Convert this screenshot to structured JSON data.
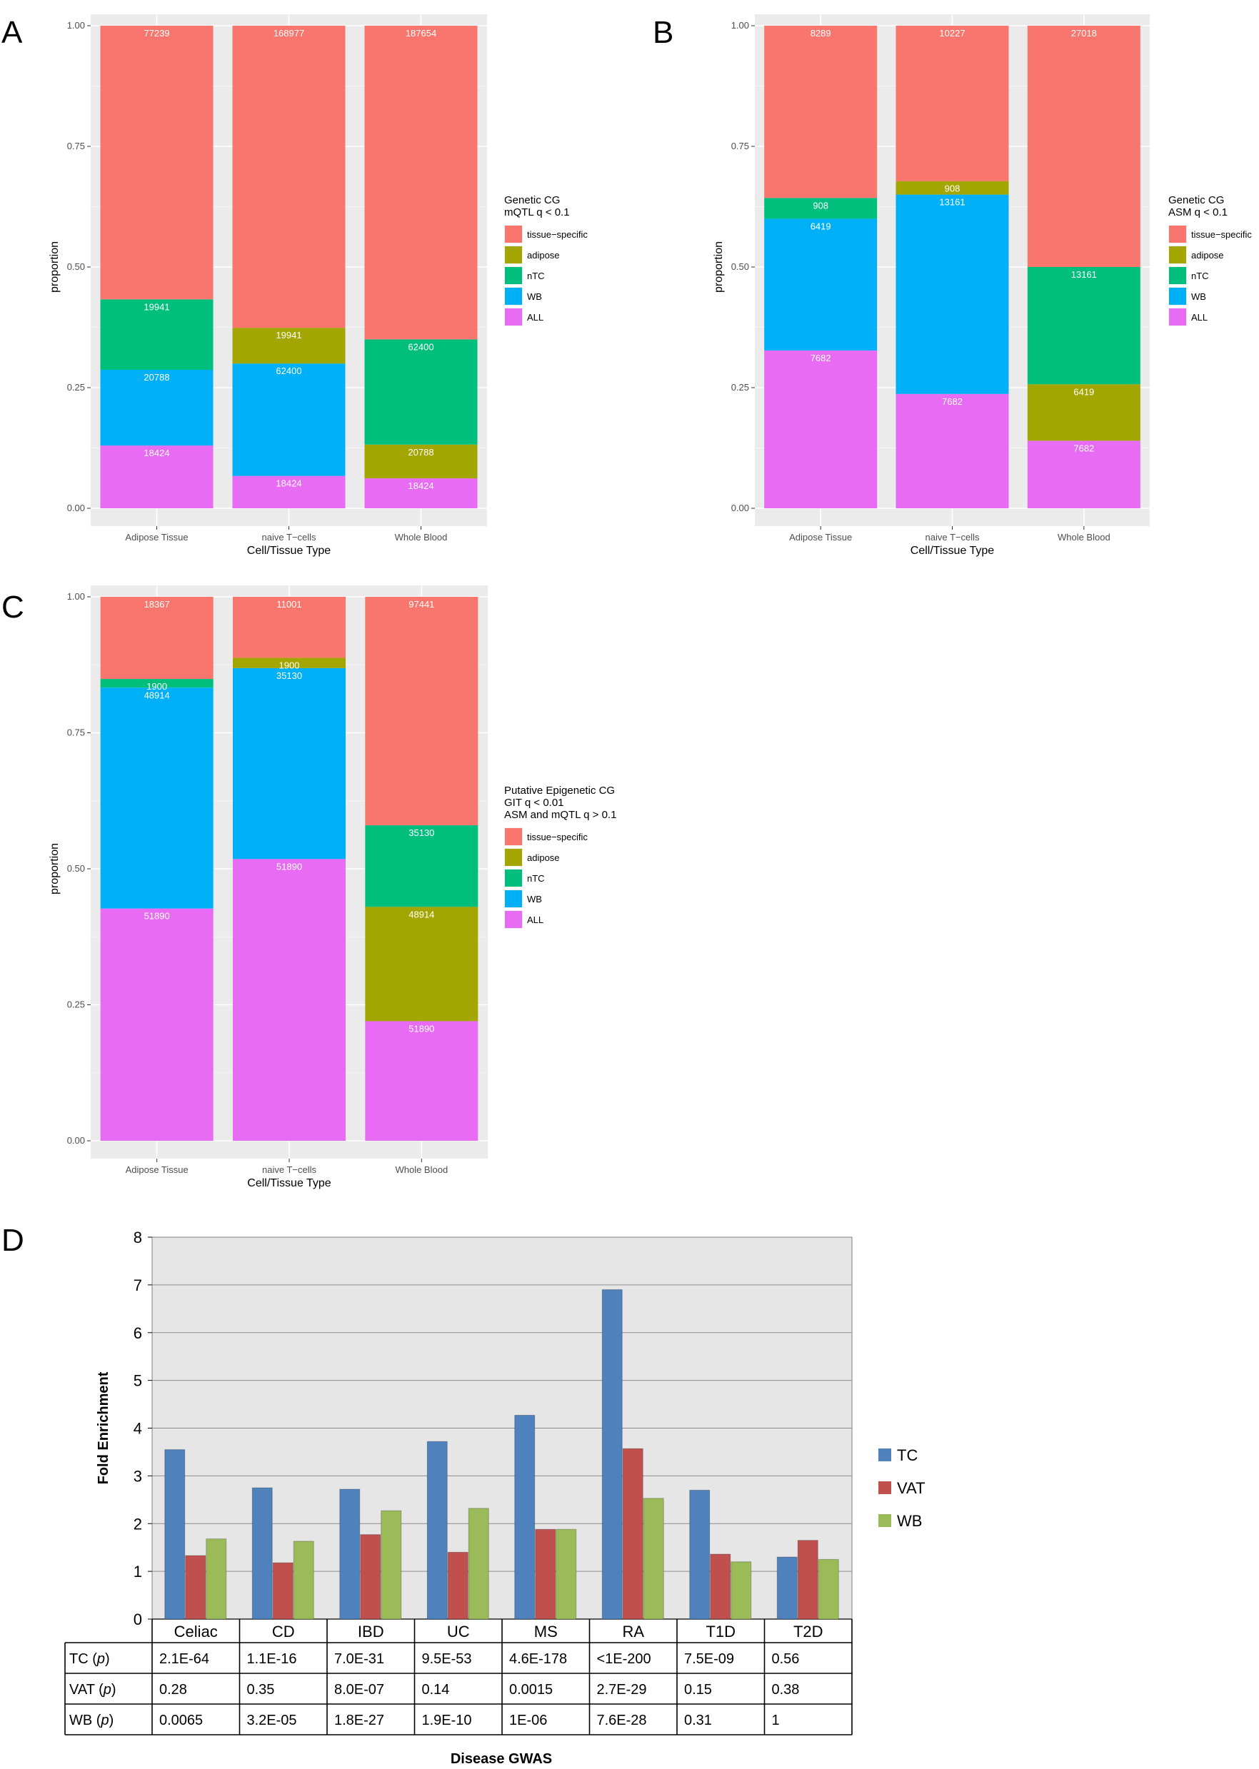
{
  "panel_labels": [
    "A",
    "B",
    "C",
    "D"
  ],
  "colors": {
    "tissue-specific": "#F8766D",
    "adipose": "#A3A500",
    "nTC": "#00BF7D",
    "WB": "#00B0F6",
    "ALL": "#E76BF3",
    "TC": "#4F81BD",
    "VAT": "#C0504D",
    "WB_d": "#9BBB59"
  },
  "chart_data": [
    {
      "id": "A",
      "type": "bar",
      "stacked": true,
      "categories": [
        "Adipose Tissue",
        "naive T−cells",
        "Whole Blood"
      ],
      "xlabel": "Cell/Tissue Type",
      "ylabel": "proportion",
      "ylim": [
        0,
        1
      ],
      "yticks": [
        "0.00",
        "0.25",
        "0.50",
        "0.75",
        "1.00"
      ],
      "legend_title": [
        "Genetic CG",
        "mQTL q < 0.1"
      ],
      "legend_items": [
        "tissue−specific",
        "adipose",
        "nTC",
        "WB",
        "ALL"
      ],
      "stacks": [
        [
          {
            "group": "ALL",
            "label": "18424",
            "lo": 0.0,
            "hi": 0.13
          },
          {
            "group": "WB",
            "label": "20788",
            "lo": 0.13,
            "hi": 0.287
          },
          {
            "group": "nTC",
            "label": "19941",
            "lo": 0.287,
            "hi": 0.433
          },
          {
            "group": "tissue-specific",
            "label": "77239",
            "lo": 0.433,
            "hi": 1.0
          }
        ],
        [
          {
            "group": "ALL",
            "label": "18424",
            "lo": 0.0,
            "hi": 0.067
          },
          {
            "group": "WB",
            "label": "62400",
            "lo": 0.067,
            "hi": 0.3
          },
          {
            "group": "adipose",
            "label": "19941",
            "lo": 0.3,
            "hi": 0.374
          },
          {
            "group": "tissue-specific",
            "label": "168977",
            "lo": 0.374,
            "hi": 1.0
          }
        ],
        [
          {
            "group": "ALL",
            "label": "18424",
            "lo": 0.0,
            "hi": 0.062
          },
          {
            "group": "adipose",
            "label": "20788",
            "lo": 0.062,
            "hi": 0.132
          },
          {
            "group": "nTC",
            "label": "62400",
            "lo": 0.132,
            "hi": 0.35
          },
          {
            "group": "tissue-specific",
            "label": "187654",
            "lo": 0.35,
            "hi": 1.0
          }
        ]
      ]
    },
    {
      "id": "B",
      "type": "bar",
      "stacked": true,
      "categories": [
        "Adipose Tissue",
        "naive T−cells",
        "Whole Blood"
      ],
      "xlabel": "Cell/Tissue Type",
      "ylabel": "proportion",
      "ylim": [
        0,
        1
      ],
      "yticks": [
        "0.00",
        "0.25",
        "0.50",
        "0.75",
        "1.00"
      ],
      "legend_title": [
        "Genetic CG",
        "ASM q < 0.1"
      ],
      "legend_items": [
        "tissue−specific",
        "adipose",
        "nTC",
        "WB",
        "ALL"
      ],
      "stacks": [
        [
          {
            "group": "ALL",
            "label": "7682",
            "lo": 0.0,
            "hi": 0.327
          },
          {
            "group": "WB",
            "label": "6419",
            "lo": 0.327,
            "hi": 0.6
          },
          {
            "group": "nTC",
            "label": "908",
            "lo": 0.6,
            "hi": 0.643
          },
          {
            "group": "tissue-specific",
            "label": "8289",
            "lo": 0.643,
            "hi": 1.0
          }
        ],
        [
          {
            "group": "ALL",
            "label": "7682",
            "lo": 0.0,
            "hi": 0.237
          },
          {
            "group": "WB",
            "label": "13161",
            "lo": 0.237,
            "hi": 0.65
          },
          {
            "group": "adipose",
            "label": "908",
            "lo": 0.65,
            "hi": 0.678
          },
          {
            "group": "tissue-specific",
            "label": "10227",
            "lo": 0.678,
            "hi": 1.0
          }
        ],
        [
          {
            "group": "ALL",
            "label": "7682",
            "lo": 0.0,
            "hi": 0.14
          },
          {
            "group": "adipose",
            "label": "6419",
            "lo": 0.14,
            "hi": 0.257
          },
          {
            "group": "nTC",
            "label": "13161",
            "lo": 0.257,
            "hi": 0.5
          },
          {
            "group": "tissue-specific",
            "label": "27018",
            "lo": 0.5,
            "hi": 1.0
          }
        ]
      ]
    },
    {
      "id": "C",
      "type": "bar",
      "stacked": true,
      "categories": [
        "Adipose Tissue",
        "naive T−cells",
        "Whole Blood"
      ],
      "xlabel": "Cell/Tissue Type",
      "ylabel": "proportion",
      "ylim": [
        0,
        1
      ],
      "yticks": [
        "0.00",
        "0.25",
        "0.50",
        "0.75",
        "1.00"
      ],
      "legend_title": [
        "Putative Epigenetic CG",
        "GIT q < 0.01",
        "ASM and mQTL q > 0.1"
      ],
      "legend_items": [
        "tissue−specific",
        "adipose",
        "nTC",
        "WB",
        "ALL"
      ],
      "stacks": [
        [
          {
            "group": "ALL",
            "label": "51890",
            "lo": 0.0,
            "hi": 0.427
          },
          {
            "group": "WB",
            "label": "48914",
            "lo": 0.427,
            "hi": 0.833
          },
          {
            "group": "nTC",
            "label": "1900",
            "lo": 0.833,
            "hi": 0.849
          },
          {
            "group": "tissue-specific",
            "label": "18367",
            "lo": 0.849,
            "hi": 1.0
          }
        ],
        [
          {
            "group": "ALL",
            "label": "51890",
            "lo": 0.0,
            "hi": 0.518
          },
          {
            "group": "WB",
            "label": "35130",
            "lo": 0.518,
            "hi": 0.869
          },
          {
            "group": "adipose",
            "label": "1900",
            "lo": 0.869,
            "hi": 0.888
          },
          {
            "group": "tissue-specific",
            "label": "11001",
            "lo": 0.888,
            "hi": 1.0
          }
        ],
        [
          {
            "group": "ALL",
            "label": "51890",
            "lo": 0.0,
            "hi": 0.22
          },
          {
            "group": "adipose",
            "label": "48914",
            "lo": 0.22,
            "hi": 0.43
          },
          {
            "group": "nTC",
            "label": "35130",
            "lo": 0.43,
            "hi": 0.58
          },
          {
            "group": "tissue-specific",
            "label": "97441",
            "lo": 0.58,
            "hi": 1.0
          }
        ]
      ]
    },
    {
      "id": "D",
      "type": "bar",
      "categories": [
        "Celiac",
        "CD",
        "IBD",
        "UC",
        "MS",
        "RA",
        "T1D",
        "T2D"
      ],
      "xlabel": "Disease GWAS",
      "ylabel": "Fold Enrichment",
      "ylim": [
        0,
        8
      ],
      "yticks": [
        "0",
        "1",
        "2",
        "3",
        "4",
        "5",
        "6",
        "7",
        "8"
      ],
      "series": [
        {
          "name": "TC",
          "values": [
            3.55,
            2.75,
            2.72,
            3.72,
            4.27,
            6.9,
            2.7,
            1.3
          ]
        },
        {
          "name": "VAT",
          "values": [
            1.33,
            1.18,
            1.77,
            1.4,
            1.88,
            3.57,
            1.36,
            1.65
          ]
        },
        {
          "name": "WB",
          "values": [
            1.68,
            1.63,
            2.27,
            2.32,
            1.88,
            2.53,
            1.2,
            1.25
          ]
        }
      ],
      "table": {
        "rows": [
          {
            "label": "TC",
            "p": "p",
            "values": [
              "2.1E-64",
              "1.1E-16",
              "7.0E-31",
              "9.5E-53",
              "4.6E-178",
              "<1E-200",
              "7.5E-09",
              "0.56"
            ]
          },
          {
            "label": "VAT",
            "p": "p",
            "values": [
              "0.28",
              "0.35",
              "8.0E-07",
              "0.14",
              "0.0015",
              "2.7E-29",
              "0.15",
              "0.38"
            ]
          },
          {
            "label": "WB",
            "p": "p",
            "values": [
              "0.0065",
              "3.2E-05",
              "1.8E-27",
              "1.9E-10",
              "1E-06",
              "7.6E-28",
              "0.31",
              "1"
            ]
          }
        ]
      }
    }
  ]
}
